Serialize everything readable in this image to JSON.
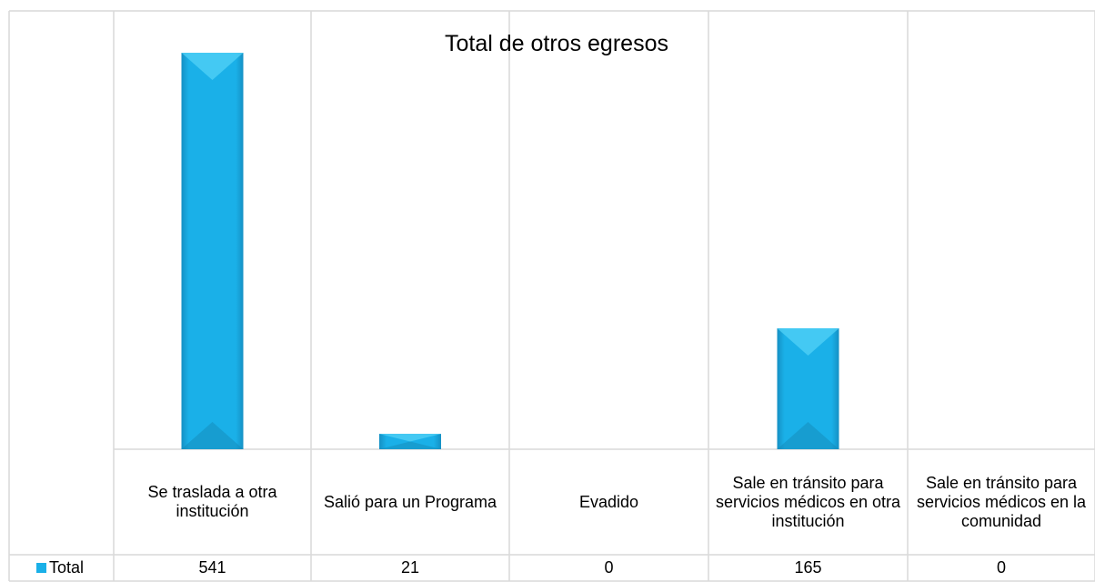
{
  "chart_data": {
    "type": "bar",
    "title": "Total de otros egresos",
    "categories": [
      "Se traslada a otra institución",
      "Salió para un Programa",
      "Evadido",
      "Sale en tránsito para servicios médicos en otra institución",
      "Sale en tránsito para servicios médicos en la comunidad"
    ],
    "series": [
      {
        "name": "Total",
        "color": "#1ab0e8",
        "values": [
          541,
          21,
          0,
          165,
          0
        ]
      }
    ]
  }
}
